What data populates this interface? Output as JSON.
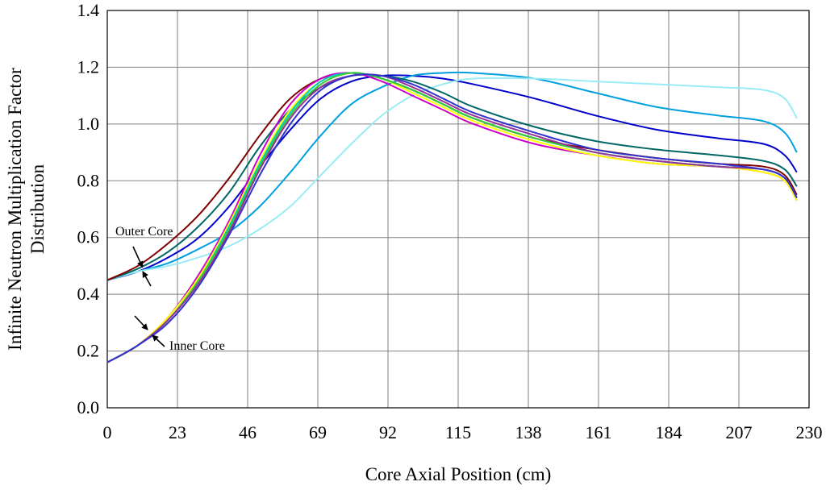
{
  "chart_data": {
    "type": "line",
    "xlabel": "Core Axial Position (cm)",
    "ylabel": "Infinite Neutron Multiplication Factor Distribution",
    "ylabel_lines": [
      "Infinite Neutron Multiplication Factor",
      "Distribution"
    ],
    "xlim": [
      0,
      230
    ],
    "ylim": [
      0,
      1.4
    ],
    "xticks": [
      0,
      23,
      46,
      69,
      92,
      115,
      138,
      161,
      184,
      207,
      230
    ],
    "xtick_labels": [
      "0",
      "23",
      "46",
      "69",
      "92",
      "115",
      "138",
      "161",
      "184",
      "207",
      "230"
    ],
    "yticks": [
      0.0,
      0.2,
      0.4,
      0.6,
      0.8,
      1.0,
      1.2,
      1.4
    ],
    "ytick_labels": [
      "0.0",
      "0.2",
      "0.4",
      "0.6",
      "0.8",
      "1.0",
      "1.2",
      "1.4"
    ],
    "grid": true,
    "annotations": [
      {
        "text": "Outer Core",
        "points_to_x": 11,
        "points_to_y": 0.49
      },
      {
        "text": "Inner Core",
        "points_to_x": 13,
        "points_to_y": 0.27
      }
    ],
    "series": [
      {
        "color": "#0000cc",
        "x": [
          0,
          10,
          20,
          30,
          40,
          50,
          60,
          70,
          80,
          90,
          100,
          110,
          120,
          140,
          160,
          180,
          200,
          215,
          222,
          226
        ],
        "y": [
          0.45,
          0.48,
          0.53,
          0.6,
          0.71,
          0.85,
          0.98,
          1.09,
          1.15,
          1.17,
          1.17,
          1.16,
          1.14,
          1.09,
          1.03,
          0.98,
          0.95,
          0.93,
          0.89,
          0.83
        ]
      },
      {
        "color": "#00a0e0",
        "x": [
          0,
          10,
          20,
          30,
          40,
          50,
          60,
          70,
          80,
          90,
          100,
          110,
          120,
          140,
          160,
          180,
          200,
          215,
          222,
          226
        ],
        "y": [
          0.45,
          0.48,
          0.51,
          0.56,
          0.62,
          0.71,
          0.83,
          0.96,
          1.07,
          1.13,
          1.17,
          1.18,
          1.18,
          1.16,
          1.11,
          1.06,
          1.03,
          1.01,
          0.97,
          0.9
        ]
      },
      {
        "color": "#99ecf5",
        "x": [
          0,
          10,
          20,
          30,
          40,
          50,
          60,
          70,
          80,
          90,
          100,
          110,
          120,
          140,
          160,
          180,
          200,
          215,
          222,
          226
        ],
        "y": [
          0.45,
          0.48,
          0.5,
          0.53,
          0.57,
          0.63,
          0.71,
          0.82,
          0.93,
          1.03,
          1.1,
          1.14,
          1.16,
          1.16,
          1.15,
          1.14,
          1.13,
          1.12,
          1.09,
          1.02
        ]
      },
      {
        "color": "#006666",
        "x": [
          0,
          10,
          20,
          30,
          40,
          50,
          60,
          70,
          80,
          90,
          100,
          110,
          120,
          140,
          160,
          180,
          200,
          215,
          222,
          226
        ],
        "y": [
          0.45,
          0.49,
          0.55,
          0.64,
          0.76,
          0.92,
          1.05,
          1.13,
          1.17,
          1.17,
          1.15,
          1.11,
          1.06,
          0.99,
          0.94,
          0.91,
          0.89,
          0.87,
          0.84,
          0.78
        ]
      },
      {
        "color": "#800000",
        "x": [
          0,
          10,
          20,
          30,
          40,
          50,
          60,
          70,
          80,
          90,
          100,
          110,
          120,
          140,
          160,
          180,
          200,
          215,
          222,
          226
        ],
        "y": [
          0.45,
          0.5,
          0.58,
          0.68,
          0.81,
          0.96,
          1.09,
          1.16,
          1.18,
          1.16,
          1.12,
          1.07,
          1.02,
          0.95,
          0.91,
          0.88,
          0.86,
          0.85,
          0.82,
          0.75
        ]
      },
      {
        "color": "#cc00cc",
        "x": [
          0,
          10,
          20,
          30,
          40,
          50,
          60,
          70,
          80,
          90,
          100,
          110,
          120,
          140,
          160,
          180,
          200,
          215,
          222,
          226
        ],
        "y": [
          0.16,
          0.22,
          0.32,
          0.47,
          0.66,
          0.89,
          1.07,
          1.16,
          1.18,
          1.15,
          1.1,
          1.05,
          1.0,
          0.93,
          0.89,
          0.86,
          0.85,
          0.83,
          0.8,
          0.73
        ]
      },
      {
        "color": "#ffff00",
        "x": [
          0,
          10,
          20,
          30,
          40,
          50,
          60,
          70,
          80,
          90,
          100,
          110,
          120,
          140,
          160,
          180,
          200,
          215,
          222,
          226
        ],
        "y": [
          0.16,
          0.22,
          0.32,
          0.46,
          0.65,
          0.87,
          1.05,
          1.15,
          1.18,
          1.16,
          1.11,
          1.06,
          1.01,
          0.94,
          0.89,
          0.86,
          0.85,
          0.83,
          0.8,
          0.73
        ]
      },
      {
        "color": "#00cccc",
        "x": [
          0,
          10,
          20,
          30,
          40,
          50,
          60,
          70,
          80,
          90,
          100,
          110,
          120,
          140,
          160,
          180,
          200,
          215,
          222,
          226
        ],
        "y": [
          0.16,
          0.22,
          0.31,
          0.45,
          0.64,
          0.86,
          1.04,
          1.15,
          1.18,
          1.16,
          1.12,
          1.07,
          1.02,
          0.95,
          0.9,
          0.87,
          0.85,
          0.84,
          0.81,
          0.74
        ]
      },
      {
        "color": "#33cc33",
        "x": [
          0,
          10,
          20,
          30,
          40,
          50,
          60,
          70,
          80,
          90,
          100,
          110,
          120,
          140,
          160,
          180,
          200,
          215,
          222,
          226
        ],
        "y": [
          0.16,
          0.22,
          0.31,
          0.45,
          0.63,
          0.85,
          1.03,
          1.14,
          1.18,
          1.16,
          1.12,
          1.07,
          1.02,
          0.95,
          0.9,
          0.87,
          0.85,
          0.84,
          0.81,
          0.74
        ]
      },
      {
        "color": "#993399",
        "x": [
          0,
          10,
          20,
          30,
          40,
          50,
          60,
          70,
          80,
          90,
          100,
          110,
          120,
          140,
          160,
          180,
          200,
          215,
          222,
          226
        ],
        "y": [
          0.16,
          0.22,
          0.31,
          0.44,
          0.62,
          0.84,
          1.02,
          1.13,
          1.17,
          1.17,
          1.13,
          1.08,
          1.03,
          0.96,
          0.9,
          0.87,
          0.85,
          0.84,
          0.81,
          0.74
        ]
      },
      {
        "color": "#3333cc",
        "x": [
          0,
          10,
          20,
          30,
          40,
          50,
          60,
          70,
          80,
          90,
          100,
          110,
          120,
          140,
          160,
          180,
          200,
          215,
          222,
          226
        ],
        "y": [
          0.16,
          0.22,
          0.3,
          0.43,
          0.61,
          0.82,
          1.0,
          1.12,
          1.17,
          1.17,
          1.14,
          1.09,
          1.04,
          0.97,
          0.91,
          0.88,
          0.86,
          0.84,
          0.81,
          0.74
        ]
      }
    ]
  }
}
